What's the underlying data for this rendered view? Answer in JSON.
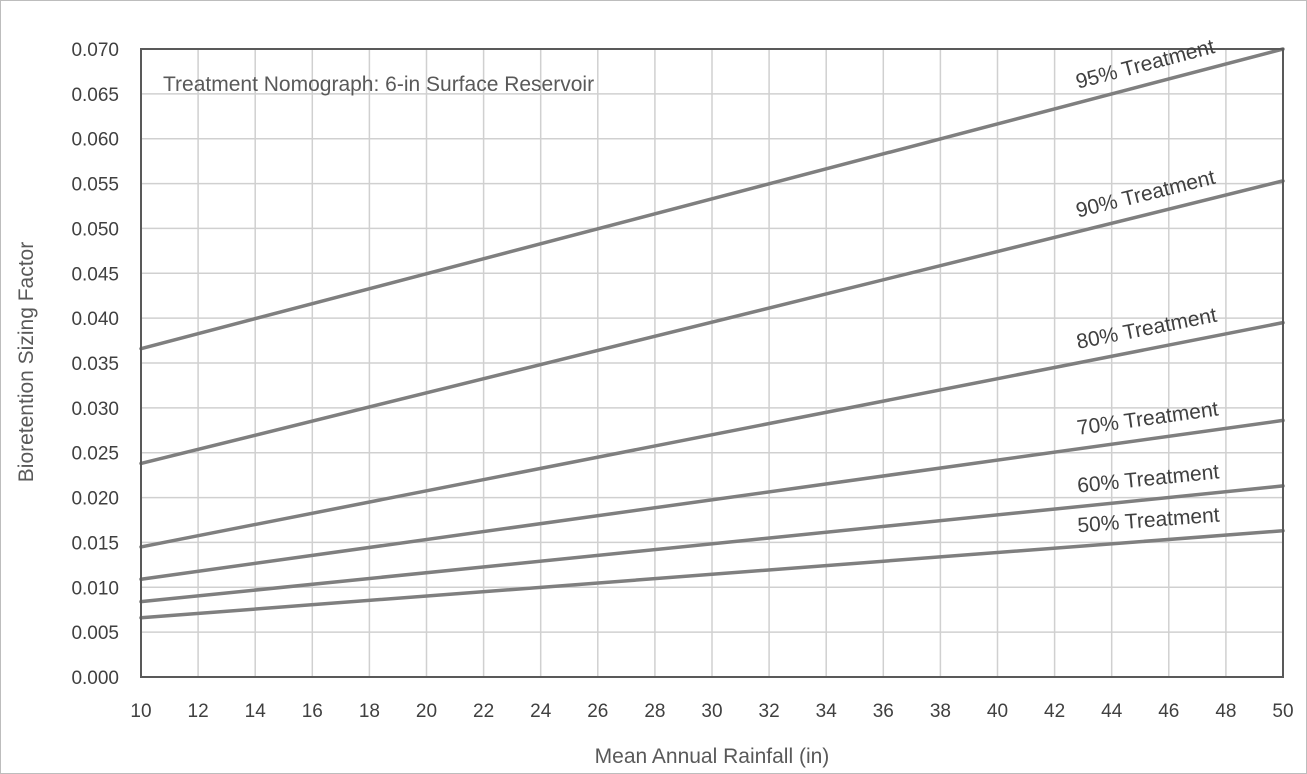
{
  "chart_data": {
    "type": "line",
    "title": "Treatment Nomograph: 6-in Surface Reservoir",
    "xlabel": "Mean Annual Rainfall (in)",
    "ylabel": "Bioretention Sizing Factor",
    "xlim": [
      10,
      50
    ],
    "ylim": [
      0,
      0.07
    ],
    "xticks": [
      "10",
      "12",
      "14",
      "16",
      "18",
      "20",
      "22",
      "24",
      "26",
      "28",
      "30",
      "32",
      "34",
      "36",
      "38",
      "40",
      "42",
      "44",
      "46",
      "48",
      "50"
    ],
    "yticks": [
      "0.000",
      "0.005",
      "0.010",
      "0.015",
      "0.020",
      "0.025",
      "0.030",
      "0.035",
      "0.040",
      "0.045",
      "0.050",
      "0.055",
      "0.060",
      "0.065",
      "0.070"
    ],
    "grid": true,
    "x": [
      10,
      50
    ],
    "series": [
      {
        "name": "95% Treatment",
        "values": [
          0.0366,
          0.07
        ]
      },
      {
        "name": "90% Treatment",
        "values": [
          0.0238,
          0.0553
        ]
      },
      {
        "name": "80% Treatment",
        "values": [
          0.0145,
          0.0395
        ]
      },
      {
        "name": "70% Treatment",
        "values": [
          0.0109,
          0.0286
        ]
      },
      {
        "name": "60% Treatment",
        "values": [
          0.0084,
          0.0213
        ]
      },
      {
        "name": "50% Treatment",
        "values": [
          0.0066,
          0.0163
        ]
      }
    ],
    "line_color": "#7f7f7f",
    "grid_color": "#d0d0d0"
  }
}
